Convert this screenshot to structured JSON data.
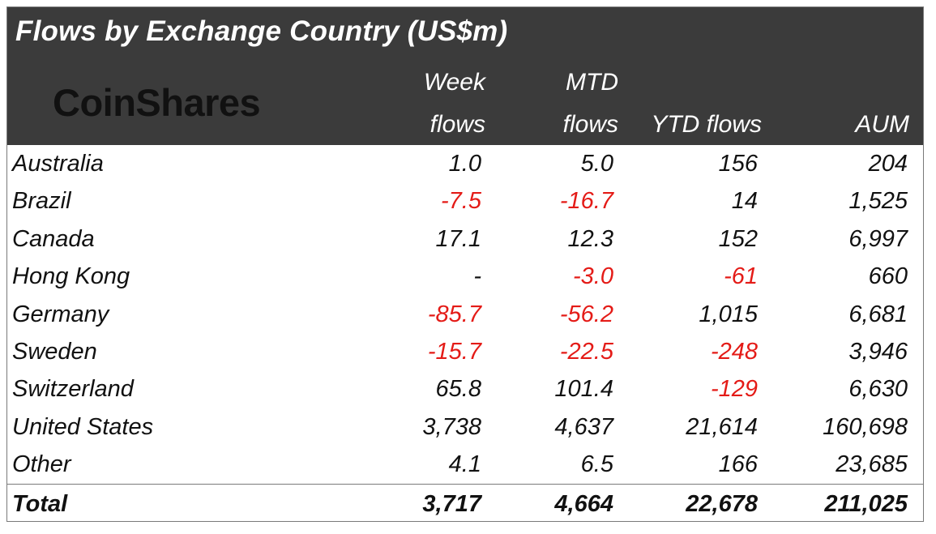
{
  "chart_data": {
    "type": "table",
    "title": "Flows by Exchange Country (US$m)",
    "logo": "CoinShares",
    "columns": [
      {
        "line1": "Week",
        "line2": "flows"
      },
      {
        "line1": "MTD",
        "line2": "flows"
      },
      {
        "line1": "",
        "line2": "YTD flows"
      },
      {
        "line1": "",
        "line2": "AUM"
      }
    ],
    "rows": [
      {
        "country": "Australia",
        "week": "1.0",
        "mtd": "5.0",
        "ytd": "156",
        "aum": "204"
      },
      {
        "country": "Brazil",
        "week": "-7.5",
        "mtd": "-16.7",
        "ytd": "14",
        "aum": "1,525"
      },
      {
        "country": "Canada",
        "week": "17.1",
        "mtd": "12.3",
        "ytd": "152",
        "aum": "6,997"
      },
      {
        "country": "Hong Kong",
        "week": "-",
        "mtd": "-3.0",
        "ytd": "-61",
        "aum": "660"
      },
      {
        "country": "Germany",
        "week": "-85.7",
        "mtd": "-56.2",
        "ytd": "1,015",
        "aum": "6,681"
      },
      {
        "country": "Sweden",
        "week": "-15.7",
        "mtd": "-22.5",
        "ytd": "-248",
        "aum": "3,946"
      },
      {
        "country": "Switzerland",
        "week": "65.8",
        "mtd": "101.4",
        "ytd": "-129",
        "aum": "6,630"
      },
      {
        "country": "United States",
        "week": "3,738",
        "mtd": "4,637",
        "ytd": "21,614",
        "aum": "160,698"
      },
      {
        "country": "Other",
        "week": "4.1",
        "mtd": "6.5",
        "ytd": "166",
        "aum": "23,685"
      }
    ],
    "total": {
      "country": "Total",
      "week": "3,717",
      "mtd": "4,664",
      "ytd": "22,678",
      "aum": "211,025"
    },
    "colors": {
      "header_bg": "#3b3b3b",
      "header_text": "#ffffff",
      "negative": "#e41b17",
      "text": "#111111"
    }
  }
}
